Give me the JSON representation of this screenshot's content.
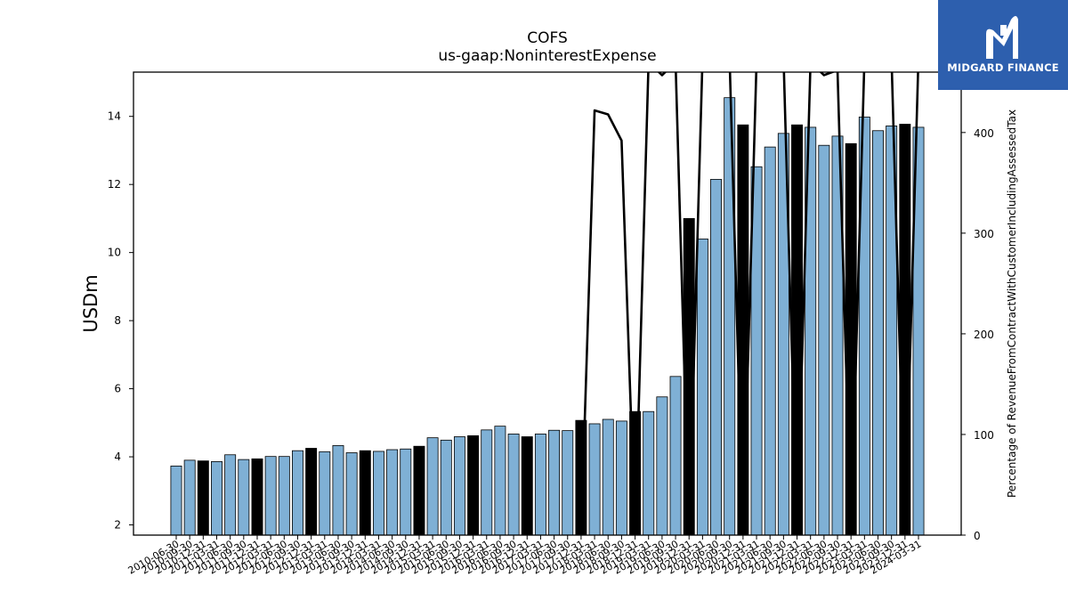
{
  "brand": {
    "name": "MIDGARD FINANCE",
    "bg_color": "#2d5fae",
    "icon": "midgard-m-logo-icon"
  },
  "chart_data": {
    "type": "bar",
    "title": "COFS",
    "subtitle": "us-gaap:NoninterestExpense",
    "ylabel_left": "USDm",
    "ylabel_right": "Percentage of RevenueFromContractWithCustomerIncludingAssessedTax",
    "ylim_left": [
      1.7,
      15.3
    ],
    "ylim_right": [
      0,
      460
    ],
    "yticks_left": [
      "2",
      "4",
      "6",
      "8",
      "10",
      "12",
      "14"
    ],
    "yticks_right": [
      "0",
      "100",
      "200",
      "300",
      "400"
    ],
    "bar_color": "#7fb0d5",
    "highlight_color": "#000000",
    "line_color": "#000000",
    "categories": [
      "2010-06-30",
      "2010-09-30",
      "2010-12-31",
      "2011-03-31",
      "2011-06-30",
      "2011-09-30",
      "2011-12-31",
      "2012-03-31",
      "2012-06-30",
      "2012-09-30",
      "2012-12-31",
      "2013-03-31",
      "2013-06-30",
      "2013-09-30",
      "2013-12-31",
      "2014-03-31",
      "2014-06-30",
      "2014-09-30",
      "2014-12-31",
      "2015-03-31",
      "2015-06-30",
      "2015-09-30",
      "2015-12-31",
      "2016-03-31",
      "2016-06-30",
      "2016-09-30",
      "2016-12-31",
      "2017-03-31",
      "2017-06-30",
      "2017-09-30",
      "2017-12-31",
      "2018-03-31",
      "2018-06-30",
      "2018-09-30",
      "2018-12-31",
      "2019-03-31",
      "2019-06-30",
      "2019-09-30",
      "2019-12-31",
      "2020-03-31",
      "2020-06-30",
      "2020-09-30",
      "2020-12-31",
      "2021-03-31",
      "2021-06-30",
      "2021-09-30",
      "2021-12-31",
      "2022-03-31",
      "2022-06-30",
      "2022-09-30",
      "2022-12-31",
      "2023-03-31",
      "2023-06-30",
      "2023-09-30",
      "2023-12-31",
      "2024-03-31"
    ],
    "xtick_labels": [
      "2010-06-30",
      "2010-09-30",
      "2010-12-31",
      "2011-03-31",
      "2011-06-30",
      "2011-09-30",
      "2011-12-31",
      "2012-03-31",
      "2012-06-30",
      "2012-09-30",
      "2012-12-31",
      "2013-03-31",
      "2013-06-30",
      "2013-09-30",
      "2013-12-31",
      "2014-03-31",
      "2014-06-30",
      "2014-09-30",
      "2014-12-31",
      "2015-03-31",
      "2015-06-30",
      "2015-09-30",
      "2015-12-31",
      "2016-03-31",
      "2016-06-30",
      "2016-09-30",
      "2016-12-31",
      "2017-03-31",
      "2017-06-30",
      "2017-09-30",
      "2017-12-31",
      "2018-03-31",
      "2018-06-30",
      "2018-09-30",
      "2018-12-31",
      "2019-03-31",
      "2019-06-30",
      "2019-09-30",
      "2019-12-31",
      "2020-03-31",
      "2020-06-30",
      "2020-09-30",
      "2020-12-31",
      "2021-03-31",
      "2021-06-30",
      "2021-09-30",
      "2021-12-31",
      "2022-03-31",
      "2022-06-30",
      "2022-09-30",
      "2022-12-31",
      "2023-03-31",
      "2023-06-30",
      "2023-09-30",
      "2023-12-31",
      "2024-03-31"
    ],
    "series": [
      {
        "kind": "bar",
        "axis": "left",
        "values": [
          3.73,
          3.9,
          3.88,
          3.86,
          4.06,
          3.92,
          3.94,
          4.01,
          4.01,
          4.18,
          4.25,
          4.15,
          4.33,
          4.12,
          4.18,
          4.16,
          4.21,
          4.23,
          4.31,
          4.56,
          4.49,
          4.59,
          4.62,
          4.79,
          4.9,
          4.67,
          4.59,
          4.67,
          4.78,
          4.77,
          5.07,
          4.97,
          5.1,
          5.05,
          5.33,
          5.33,
          5.76,
          6.36,
          11.0,
          10.4,
          12.15,
          14.55,
          13.75,
          12.52,
          13.1,
          13.5,
          13.75,
          13.68,
          13.15,
          13.42,
          13.2,
          13.98,
          13.58,
          13.72,
          13.77,
          13.68
        ],
        "highlight": [
          false,
          false,
          true,
          false,
          false,
          false,
          true,
          false,
          false,
          false,
          true,
          false,
          false,
          false,
          true,
          false,
          false,
          false,
          true,
          false,
          false,
          false,
          true,
          false,
          false,
          false,
          true,
          false,
          false,
          false,
          true,
          false,
          false,
          false,
          true,
          false,
          false,
          false,
          true,
          false,
          false,
          false,
          true,
          false,
          false,
          false,
          true,
          false,
          false,
          false,
          true,
          false,
          false,
          false,
          true,
          false
        ]
      },
      {
        "kind": "line",
        "axis": "right",
        "values": [
          null,
          null,
          null,
          null,
          null,
          null,
          null,
          null,
          null,
          null,
          null,
          null,
          null,
          null,
          null,
          null,
          null,
          null,
          null,
          null,
          null,
          null,
          null,
          null,
          null,
          null,
          null,
          null,
          null,
          null,
          0,
          422,
          418,
          392,
          0,
          470,
          457,
          470,
          0,
          475,
          470,
          475,
          0,
          470,
          470,
          475,
          0,
          470,
          457,
          462,
          0,
          475,
          470,
          475,
          0,
          475
        ]
      }
    ]
  }
}
